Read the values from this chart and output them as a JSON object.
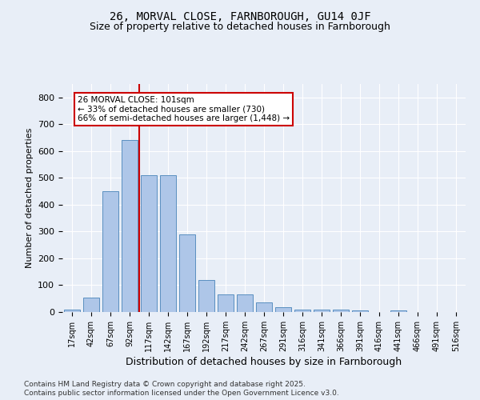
{
  "title1": "26, MORVAL CLOSE, FARNBOROUGH, GU14 0JF",
  "title2": "Size of property relative to detached houses in Farnborough",
  "xlabel": "Distribution of detached houses by size in Farnborough",
  "ylabel": "Number of detached properties",
  "bin_labels": [
    "17sqm",
    "42sqm",
    "67sqm",
    "92sqm",
    "117sqm",
    "142sqm",
    "167sqm",
    "192sqm",
    "217sqm",
    "242sqm",
    "267sqm",
    "291sqm",
    "316sqm",
    "341sqm",
    "366sqm",
    "391sqm",
    "416sqm",
    "441sqm",
    "466sqm",
    "491sqm",
    "516sqm"
  ],
  "bar_heights": [
    10,
    55,
    450,
    640,
    510,
    510,
    290,
    120,
    65,
    65,
    35,
    18,
    10,
    10,
    8,
    6,
    0,
    5,
    0,
    0,
    0
  ],
  "bar_color": "#aec6e8",
  "bar_edge_color": "#5a8fc0",
  "bar_width": 0.8,
  "red_line_x": 3.5,
  "property_size": 101,
  "annotation_line1": "26 MORVAL CLOSE: 101sqm",
  "annotation_line2": "← 33% of detached houses are smaller (730)",
  "annotation_line3": "66% of semi-detached houses are larger (1,448) →",
  "annotation_box_color": "#ffffff",
  "annotation_box_edge": "#cc0000",
  "ylim": [
    0,
    850
  ],
  "yticks": [
    0,
    100,
    200,
    300,
    400,
    500,
    600,
    700,
    800
  ],
  "bg_color": "#e8eef7",
  "plot_bg_color": "#e8eef7",
  "grid_color": "#ffffff",
  "footer_line1": "Contains HM Land Registry data © Crown copyright and database right 2025.",
  "footer_line2": "Contains public sector information licensed under the Open Government Licence v3.0."
}
